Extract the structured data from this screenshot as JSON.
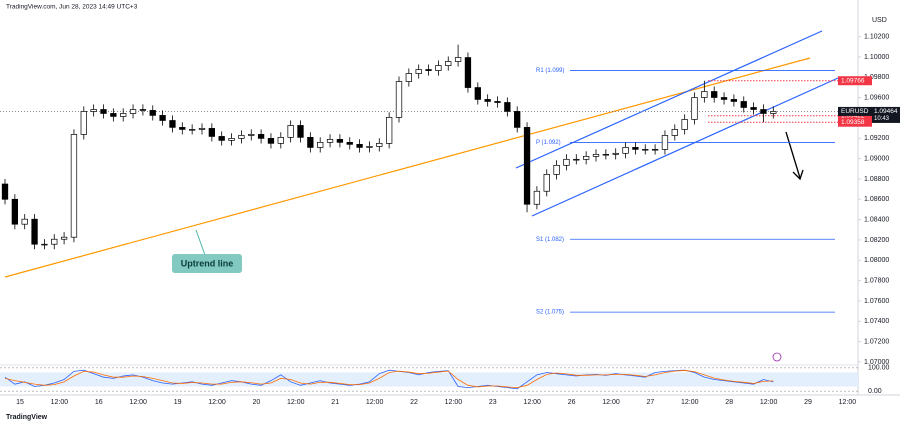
{
  "header": "TradingView.com, Jun 28, 2023 14:49 UTC+3",
  "chart_data": {
    "type": "candlestick",
    "symbol": "EURUSD",
    "currency": "USD",
    "up_color": "#ffffff",
    "down_color": "#000000",
    "open": [
      1.0875,
      1.086,
      1.08355,
      1.08404,
      1.08158,
      1.08158,
      1.08207,
      1.08227,
      1.09238,
      1.09464,
      1.09483,
      1.09444,
      1.09415,
      1.09444,
      1.09483,
      1.09474,
      1.09425,
      1.09375,
      1.09307,
      1.09287,
      1.09287,
      1.09297,
      1.09218,
      1.09179,
      1.09199,
      1.09228,
      1.09238,
      1.09199,
      1.0915,
      1.09209,
      1.09326,
      1.09209,
      1.0911,
      1.0916,
      1.09189,
      1.0916,
      1.0914,
      1.0911,
      1.0912,
      1.0915,
      1.09405,
      1.09758,
      1.09837,
      1.09876,
      1.09866,
      1.09915,
      1.09955,
      1.09994,
      1.09699,
      1.09582,
      1.09562,
      1.09552,
      1.09464,
      1.09307,
      1.08551,
      1.08679,
      1.08845,
      1.08934,
      1.08993,
      1.08993,
      1.09022,
      1.09042,
      1.09042,
      1.09052,
      1.0911,
      1.09091,
      1.09091,
      1.09091,
      1.09228,
      1.09287,
      1.09385,
      1.09601,
      1.0966,
      1.09601,
      1.09582,
      1.09562,
      1.09503,
      1.09483,
      1.09444
    ],
    "high": [
      1.088,
      1.0865,
      1.08454,
      1.08454,
      1.08208,
      1.08257,
      1.08277,
      1.09288,
      1.09514,
      1.09533,
      1.09533,
      1.09494,
      1.09494,
      1.09533,
      1.09533,
      1.09524,
      1.09475,
      1.09425,
      1.09357,
      1.09337,
      1.09347,
      1.09347,
      1.09268,
      1.09249,
      1.09278,
      1.09288,
      1.09288,
      1.09249,
      1.09259,
      1.09376,
      1.09376,
      1.09259,
      1.0921,
      1.09239,
      1.09239,
      1.0921,
      1.0919,
      1.0917,
      1.092,
      1.09455,
      1.09808,
      1.09887,
      1.09926,
      1.09926,
      1.09965,
      1.10005,
      1.10121,
      1.10044,
      1.09749,
      1.09632,
      1.09612,
      1.09602,
      1.09514,
      1.09357,
      1.08729,
      1.08895,
      1.08984,
      1.09043,
      1.09043,
      1.09072,
      1.09092,
      1.09092,
      1.09102,
      1.0916,
      1.0916,
      1.09141,
      1.09141,
      1.09278,
      1.09337,
      1.09435,
      1.09651,
      1.09766,
      1.0971,
      1.09651,
      1.09632,
      1.09612,
      1.09553,
      1.09533,
      1.09514
    ],
    "low": [
      1.0855,
      1.08305,
      1.08305,
      1.08108,
      1.08108,
      1.08108,
      1.08157,
      1.08177,
      1.09188,
      1.09414,
      1.09394,
      1.09365,
      1.09365,
      1.09394,
      1.09424,
      1.09375,
      1.09325,
      1.09257,
      1.09237,
      1.09237,
      1.09237,
      1.09168,
      1.09129,
      1.09129,
      1.09149,
      1.09178,
      1.09149,
      1.091,
      1.091,
      1.09159,
      1.09159,
      1.0906,
      1.0906,
      1.0911,
      1.0911,
      1.0909,
      1.0906,
      1.0906,
      1.0907,
      1.091,
      1.09355,
      1.09708,
      1.09787,
      1.09816,
      1.09816,
      1.09865,
      1.09905,
      1.09649,
      1.09532,
      1.09512,
      1.09502,
      1.09414,
      1.09257,
      1.08472,
      1.08501,
      1.08629,
      1.08795,
      1.08884,
      1.08943,
      1.08943,
      1.08972,
      1.08992,
      1.08992,
      1.09002,
      1.09041,
      1.09041,
      1.09041,
      1.09041,
      1.09178,
      1.09237,
      1.09335,
      1.09551,
      1.09551,
      1.09532,
      1.09512,
      1.09453,
      1.09433,
      1.09358,
      1.09394
    ],
    "close": [
      1.086,
      1.08355,
      1.08404,
      1.08158,
      1.08158,
      1.08207,
      1.08227,
      1.09238,
      1.09464,
      1.09483,
      1.09444,
      1.09415,
      1.09444,
      1.09483,
      1.09474,
      1.09425,
      1.09375,
      1.09307,
      1.09287,
      1.09287,
      1.09297,
      1.09218,
      1.09179,
      1.09199,
      1.09228,
      1.09238,
      1.09199,
      1.0915,
      1.09209,
      1.09326,
      1.09209,
      1.0911,
      1.0916,
      1.09189,
      1.0916,
      1.0914,
      1.0911,
      1.0912,
      1.0915,
      1.09405,
      1.09758,
      1.09837,
      1.09876,
      1.09866,
      1.09915,
      1.09955,
      1.09994,
      1.09699,
      1.09582,
      1.09562,
      1.09552,
      1.09464,
      1.09307,
      1.08551,
      1.08679,
      1.08845,
      1.08934,
      1.08993,
      1.08993,
      1.09022,
      1.09042,
      1.09042,
      1.09052,
      1.0911,
      1.09091,
      1.09091,
      1.09091,
      1.09228,
      1.09287,
      1.09385,
      1.09601,
      1.0966,
      1.09601,
      1.09582,
      1.09562,
      1.09503,
      1.09483,
      1.09444,
      1.09464
    ],
    "ylim": [
      1.0697,
      1.1056
    ],
    "yticks": [
      {
        "value": 1.102,
        "label": "1.10200"
      },
      {
        "value": 1.1,
        "label": "1.10000"
      },
      {
        "value": 1.098,
        "label": "1.09800"
      },
      {
        "value": 1.096,
        "label": "1.09600"
      },
      {
        "value": 1.094,
        "label": "1.09400"
      },
      {
        "value": 1.092,
        "label": "1.09200"
      },
      {
        "value": 1.09,
        "label": "1.09000"
      },
      {
        "value": 1.088,
        "label": "1.08800"
      },
      {
        "value": 1.086,
        "label": "1.08600"
      },
      {
        "value": 1.084,
        "label": "1.08400"
      },
      {
        "value": 1.082,
        "label": "1.08200"
      },
      {
        "value": 1.08,
        "label": "1.08000"
      },
      {
        "value": 1.078,
        "label": "1.07800"
      },
      {
        "value": 1.076,
        "label": "1.07600"
      },
      {
        "value": 1.074,
        "label": "1.07400"
      },
      {
        "value": 1.072,
        "label": "1.07200"
      },
      {
        "value": 1.07,
        "label": "1.07000"
      }
    ],
    "x_labels": [
      "15",
      "12:00",
      "16",
      "12:00",
      "19",
      "12:00",
      "20",
      "12:00",
      "21",
      "12:00",
      "22",
      "12:00",
      "23",
      "12:00",
      "26",
      "12:00",
      "27",
      "12:00",
      "28",
      "12:00",
      "29",
      "12:00"
    ],
    "pivots": [
      {
        "value": 1.09866,
        "label": "R1 (1.099)"
      },
      {
        "value": 1.09159,
        "label": "P (1.092)"
      },
      {
        "value": 1.08207,
        "label": "S1 (1.082)"
      },
      {
        "value": 1.0749,
        "label": "S2 (1.075)"
      }
    ],
    "price_labels": [
      {
        "value": 1.09766,
        "label": "1.09766"
      },
      {
        "value": 1.09422,
        "label": "1.09422"
      },
      {
        "value": 1.09358,
        "label": "1.09358"
      }
    ],
    "price_label_color": "#f23645",
    "last_price": {
      "value": 1.09464,
      "label": "1.09464",
      "countdown": "10:43"
    },
    "annotation": "Uptrend line",
    "oscillator": {
      "ylim": [
        -8,
        108
      ],
      "yticks": [
        {
          "value": 100,
          "label": "100.00"
        },
        {
          "value": 0,
          "label": "0.00"
        }
      ],
      "series": [
        {
          "color": "#2962ff",
          "values": [
            60,
            30,
            40,
            20,
            25,
            35,
            50,
            85,
            90,
            75,
            60,
            55,
            65,
            70,
            60,
            45,
            35,
            30,
            35,
            40,
            30,
            25,
            35,
            45,
            40,
            30,
            25,
            45,
            70,
            40,
            25,
            35,
            45,
            35,
            30,
            25,
            30,
            40,
            75,
            90,
            85,
            80,
            70,
            80,
            85,
            88,
            20,
            15,
            20,
            25,
            20,
            15,
            10,
            40,
            70,
            80,
            75,
            70,
            65,
            70,
            72,
            68,
            75,
            70,
            65,
            60,
            80,
            85,
            88,
            90,
            80,
            60,
            50,
            45,
            40,
            35,
            30,
            50,
            40
          ]
        },
        {
          "color": "#ff6d00",
          "values": [
            55,
            45,
            38,
            30,
            25,
            28,
            40,
            65,
            85,
            82,
            70,
            60,
            60,
            65,
            63,
            55,
            45,
            35,
            33,
            37,
            35,
            30,
            30,
            38,
            40,
            36,
            30,
            35,
            55,
            50,
            35,
            30,
            38,
            38,
            33,
            28,
            28,
            35,
            55,
            80,
            86,
            82,
            75,
            77,
            82,
            86,
            50,
            25,
            18,
            22,
            22,
            18,
            15,
            25,
            50,
            72,
            78,
            74,
            68,
            68,
            70,
            70,
            72,
            72,
            68,
            63,
            70,
            80,
            86,
            89,
            84,
            70,
            56,
            48,
            42,
            38,
            33,
            42,
            44
          ]
        }
      ]
    }
  },
  "footer": "TradingView"
}
